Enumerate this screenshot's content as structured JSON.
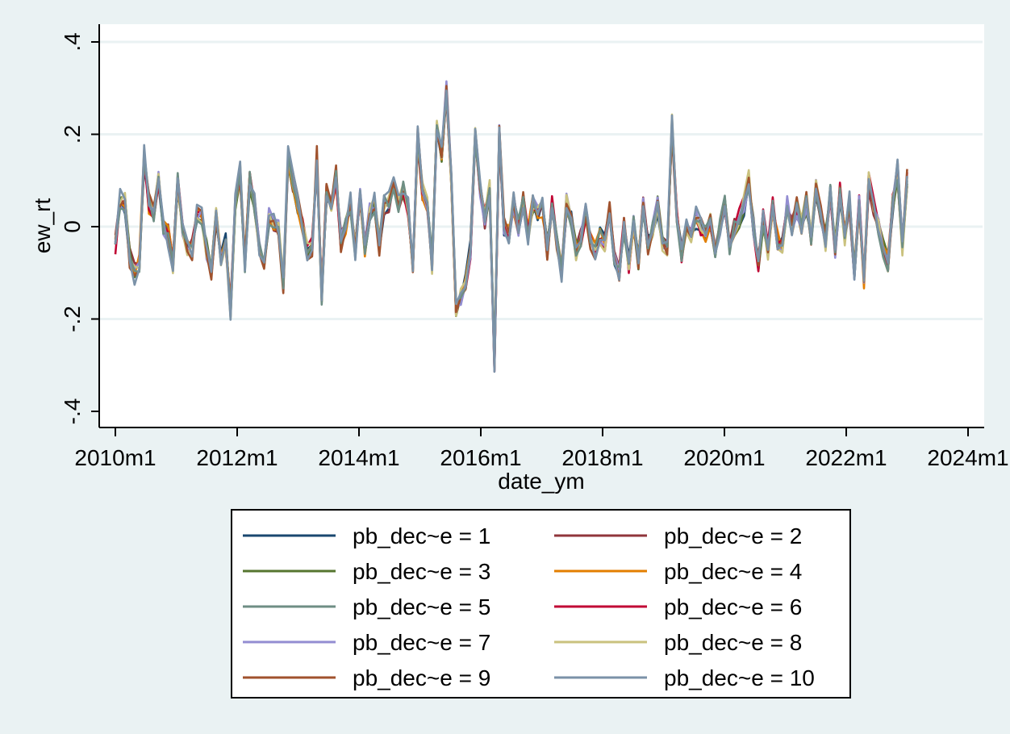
{
  "chart_data": {
    "type": "line",
    "xlabel": "date_ym",
    "ylabel": "ew_rt",
    "xlim": [
      "2010m1",
      "2024m1"
    ],
    "ylim": [
      -0.4,
      0.4
    ],
    "x_ticks": [
      "2010m1",
      "2012m1",
      "2014m1",
      "2016m1",
      "2018m1",
      "2020m1",
      "2022m1",
      "2024m1"
    ],
    "y_ticks": [
      {
        "value": -0.4,
        "label": "-.4"
      },
      {
        "value": -0.2,
        "label": "-.2"
      },
      {
        "value": 0,
        "label": "0"
      },
      {
        "value": 0.2,
        "label": ".2"
      },
      {
        "value": 0.4,
        "label": ".4"
      }
    ],
    "grid": "horizontal",
    "x_start": "2010m1",
    "x_end": "2023m1",
    "base": [
      -0.04,
      0.06,
      0.05,
      -0.07,
      -0.1,
      -0.08,
      0.15,
      0.05,
      0.03,
      0.1,
      0.0,
      -0.02,
      -0.08,
      0.1,
      0.0,
      -0.04,
      -0.05,
      0.03,
      0.02,
      -0.05,
      -0.1,
      0.03,
      -0.08,
      -0.04,
      -0.18,
      0.05,
      0.12,
      -0.08,
      0.1,
      0.05,
      -0.05,
      -0.08,
      0.02,
      0.01,
      0.0,
      -0.12,
      0.15,
      0.1,
      0.05,
      0.0,
      -0.05,
      -0.04,
      0.15,
      -0.15,
      0.07,
      0.05,
      0.11,
      -0.03,
      0.0,
      0.05,
      -0.05,
      0.07,
      -0.05,
      0.03,
      0.05,
      -0.04,
      0.05,
      0.05,
      0.1,
      0.05,
      0.08,
      0.04,
      -0.09,
      0.2,
      0.08,
      0.05,
      -0.08,
      0.22,
      0.16,
      0.3,
      0.1,
      -0.18,
      -0.15,
      -0.12,
      -0.05,
      0.2,
      0.08,
      0.02,
      0.08,
      -0.3,
      0.2,
      0.0,
      -0.02,
      0.05,
      0.0,
      0.05,
      -0.02,
      0.05,
      0.03,
      0.04,
      -0.05,
      0.05,
      -0.03,
      -0.1,
      0.05,
      0.02,
      -0.05,
      -0.03,
      0.03,
      -0.03,
      -0.05,
      -0.02,
      -0.04,
      0.04,
      -0.07,
      -0.1,
      0.0,
      -0.08,
      0.01,
      -0.08,
      0.05,
      -0.04,
      0.0,
      0.05,
      -0.03,
      -0.04,
      0.22,
      0.02,
      -0.06,
      0.0,
      -0.02,
      0.02,
      0.0,
      -0.02,
      0.02,
      -0.05,
      0.0,
      0.05,
      -0.05,
      0.0,
      0.02,
      0.05,
      0.1,
      0.0,
      -0.08,
      0.02,
      -0.05,
      0.05,
      -0.03,
      -0.04,
      0.05,
      0.0,
      0.04,
      0.0,
      0.05,
      -0.02,
      0.08,
      0.03,
      -0.03,
      0.08,
      -0.05,
      0.08,
      -0.02,
      0.05,
      -0.1,
      0.05,
      -0.12,
      0.1,
      0.05,
      0.0,
      -0.05,
      -0.08,
      0.05,
      0.12,
      -0.04,
      0.1
    ]
  },
  "legend": {
    "items": [
      {
        "label": "pb_dec~e = 1",
        "color": "#1a476f"
      },
      {
        "label": "pb_dec~e = 2",
        "color": "#90353b"
      },
      {
        "label": "pb_dec~e = 3",
        "color": "#55752f"
      },
      {
        "label": "pb_dec~e = 4",
        "color": "#e37e00"
      },
      {
        "label": "pb_dec~e = 5",
        "color": "#6e8e84"
      },
      {
        "label": "pb_dec~e = 6",
        "color": "#c10534"
      },
      {
        "label": "pb_dec~e = 7",
        "color": "#938dd2"
      },
      {
        "label": "pb_dec~e = 8",
        "color": "#cac27e"
      },
      {
        "label": "pb_dec~e = 9",
        "color": "#a0522d"
      },
      {
        "label": "pb_dec~e = 10",
        "color": "#7b92a8"
      }
    ]
  }
}
